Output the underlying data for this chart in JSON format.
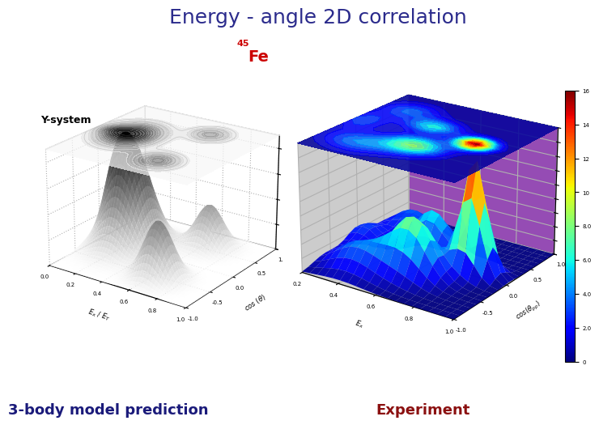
{
  "title": "Energy - angle 2D correlation",
  "title_color": "#2b2b8c",
  "title_fontsize": 18,
  "left_label": "3-body model prediction",
  "left_label_color": "#1a1a7a",
  "right_label": "Experiment",
  "right_label_color": "#8b1010",
  "label_fontsize": 13,
  "fe_label_sup": "45",
  "fe_label_main": "Fe",
  "fe_color": "#cc0000",
  "ysystem_label": "Y-system",
  "background_color": "#ffffff",
  "colorbar_ticks": [
    0,
    2.0,
    4.0,
    6.0,
    8.0,
    10,
    12,
    14,
    16
  ],
  "colorbar_ticklabels": [
    "0",
    "2.0",
    "4.0",
    "6.0",
    "8.0",
    "10",
    "12",
    "14",
    "16"
  ],
  "right_pane_color": "#7b1fa2",
  "right_floor_color": "#888888"
}
